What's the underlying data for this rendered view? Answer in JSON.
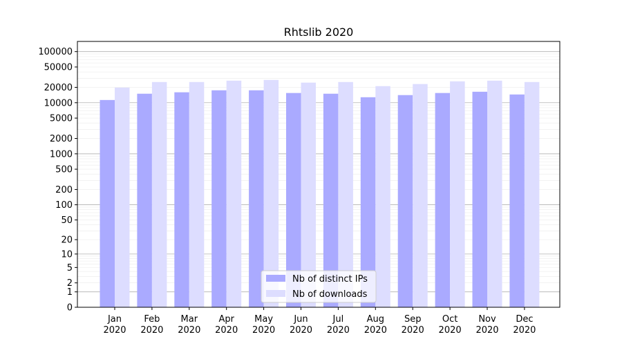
{
  "chart_data": {
    "type": "bar",
    "title": "Rhtslib 2020",
    "xlabel": "",
    "ylabel": "",
    "yscale": "log(1+y)",
    "ylim": [
      0,
      158000
    ],
    "yticks": [
      0,
      1,
      2,
      5,
      10,
      20,
      50,
      100,
      200,
      500,
      1000,
      2000,
      5000,
      10000,
      20000,
      50000,
      100000
    ],
    "grid": true,
    "legend_placement": "lower center",
    "categories": [
      "Jan\n2020",
      "Feb\n2020",
      "Mar\n2020",
      "Apr\n2020",
      "May\n2020",
      "Jun\n2020",
      "Jul\n2020",
      "Aug\n2020",
      "Sep\n2020",
      "Oct\n2020",
      "Nov\n2020",
      "Dec\n2020"
    ],
    "series": [
      {
        "name": "Nb of distinct IPs",
        "color": "#aaaaff",
        "values": [
          11300,
          15000,
          16000,
          17500,
          17500,
          15500,
          15000,
          12800,
          14100,
          15500,
          16400,
          14500
        ]
      },
      {
        "name": "Nb of downloads",
        "color": "#ddddff",
        "values": [
          19800,
          25400,
          25400,
          27000,
          27900,
          24700,
          25400,
          21100,
          23200,
          26200,
          27000,
          25400
        ]
      }
    ]
  }
}
